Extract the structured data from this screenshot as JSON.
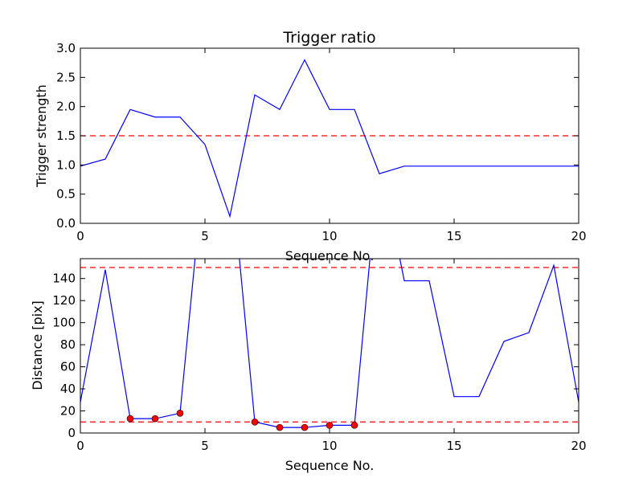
{
  "chart_data": [
    {
      "type": "line",
      "title": "Trigger ratio",
      "xlabel": "Sequence No.",
      "ylabel": "Trigger strength",
      "xlim": [
        0,
        20
      ],
      "ylim": [
        0,
        3.0
      ],
      "xticks": [
        "0",
        "5",
        "10",
        "15",
        "20"
      ],
      "yticks": [
        "0.0",
        "0.5",
        "1.0",
        "1.5",
        "2.0",
        "2.5",
        "3.0"
      ],
      "grid": false,
      "series": [
        {
          "color": "#0000ff",
          "style": "solid",
          "x": [
            0,
            1,
            2,
            3,
            4,
            5,
            6,
            7,
            8,
            9,
            10,
            11,
            12,
            13,
            14,
            15,
            16,
            17,
            18,
            19,
            20
          ],
          "y": [
            0.98,
            1.1,
            1.95,
            1.82,
            1.82,
            1.35,
            0.12,
            2.2,
            1.95,
            2.8,
            1.95,
            1.95,
            0.85,
            0.98,
            0.98,
            0.98,
            0.98,
            0.98,
            0.98,
            0.98,
            0.98
          ]
        }
      ],
      "reference_lines": [
        {
          "y": 1.5,
          "color": "#ff0000",
          "style": "dashed"
        }
      ]
    },
    {
      "type": "line",
      "title": "",
      "xlabel": "Sequence No.",
      "ylabel": "Distance [pix]",
      "xlim": [
        0,
        20
      ],
      "ylim": [
        0,
        158
      ],
      "xticks": [
        "0",
        "5",
        "10",
        "15",
        "20"
      ],
      "yticks": [
        "0",
        "20",
        "40",
        "60",
        "80",
        "100",
        "120",
        "140"
      ],
      "grid": false,
      "series": [
        {
          "color": "#0000ff",
          "style": "solid",
          "x": [
            0,
            1,
            2,
            3,
            4,
            5,
            6,
            7,
            8,
            9,
            10,
            11,
            12,
            13,
            14,
            15,
            16,
            17,
            18,
            19,
            20
          ],
          "y": [
            28,
            148,
            13,
            13,
            18,
            250,
            250,
            10,
            5,
            5,
            7,
            7,
            250,
            138,
            138,
            33,
            33,
            83,
            91,
            152,
            28
          ]
        }
      ],
      "markers": {
        "color": "#ff0000",
        "x": [
          2,
          3,
          4,
          7,
          8,
          9,
          10,
          11
        ],
        "y": [
          13,
          13,
          18,
          10,
          5,
          5,
          7,
          7
        ]
      },
      "reference_lines": [
        {
          "y": 150,
          "color": "#ff0000",
          "style": "dashed"
        },
        {
          "y": 10,
          "color": "#ff0000",
          "style": "dashed"
        }
      ]
    }
  ]
}
